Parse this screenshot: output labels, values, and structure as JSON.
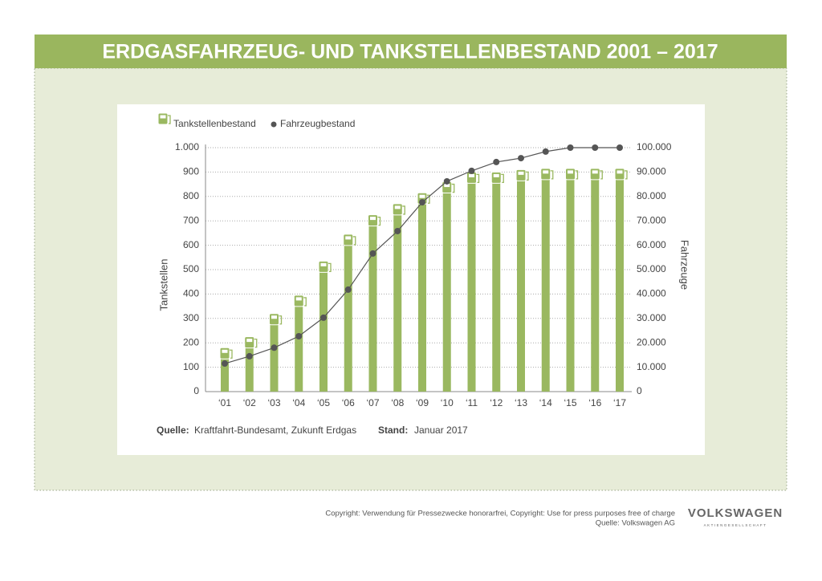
{
  "header": {
    "title": "ERDGASFAHRZEUG- UND TANKSTELLENBESTAND 2001 – 2017"
  },
  "chart_data": {
    "type": "bar-line",
    "categories": [
      "‘01",
      "‘02",
      "‘03",
      "‘04",
      "‘05",
      "‘06",
      "‘07",
      "‘08",
      "‘09",
      "‘10",
      "‘11",
      "‘12",
      "‘13",
      "‘14",
      "‘15",
      "‘16",
      "‘17"
    ],
    "series": [
      {
        "name": "Tankstellenbestand",
        "color": "#9ab860",
        "type": "bar",
        "values": [
          180,
          225,
          320,
          395,
          535,
          645,
          725,
          770,
          815,
          860,
          900,
          900,
          910,
          915,
          915,
          915,
          915
        ]
      },
      {
        "name": "Fahrzeugbestand",
        "color": "#555555",
        "type": "line",
        "axis": "y2",
        "values": [
          11500,
          14500,
          18000,
          22700,
          30300,
          41800,
          56600,
          65800,
          77600,
          86200,
          90500,
          94100,
          95700,
          98400,
          100000,
          100000,
          100000
        ]
      }
    ],
    "y_label": "Tankstellen",
    "y2_label": "Fahrzeuge",
    "ylim": [
      0,
      1000
    ],
    "yticks": [
      0,
      100,
      200,
      300,
      400,
      500,
      600,
      700,
      800,
      900,
      {
        "value": 1000,
        "label": "1.000"
      }
    ],
    "y2lim": [
      0,
      100000
    ],
    "y2ticks": [
      0,
      {
        "value": 10000,
        "label": "10.000"
      },
      {
        "value": 20000,
        "label": "20.000"
      },
      {
        "value": 30000,
        "label": "30.000"
      },
      {
        "value": 40000,
        "label": "40.000"
      },
      {
        "value": 50000,
        "label": "50.000"
      },
      {
        "value": 60000,
        "label": "60.000"
      },
      {
        "value": 70000,
        "label": "70.000"
      },
      {
        "value": 80000,
        "label": "80.000"
      },
      {
        "value": 90000,
        "label": "90.000"
      },
      {
        "value": 100000,
        "label": "100.000"
      }
    ],
    "grid": true,
    "source": {
      "label": "Quelle:",
      "text": "Kraftfahrt-Bundesamt, Zukunft Erdgas",
      "date_label": "Stand:",
      "date": "Januar 2017"
    }
  },
  "footer": {
    "copyright": "Copyright: Verwendung für Pressezwecke honorarfrei, Copyright: Use for press purposes free of charge",
    "source": "Quelle: Volkswagen AG",
    "brand": "VOLKSWAGEN",
    "brand_sub": "AKTIENGESELLSCHAFT"
  }
}
